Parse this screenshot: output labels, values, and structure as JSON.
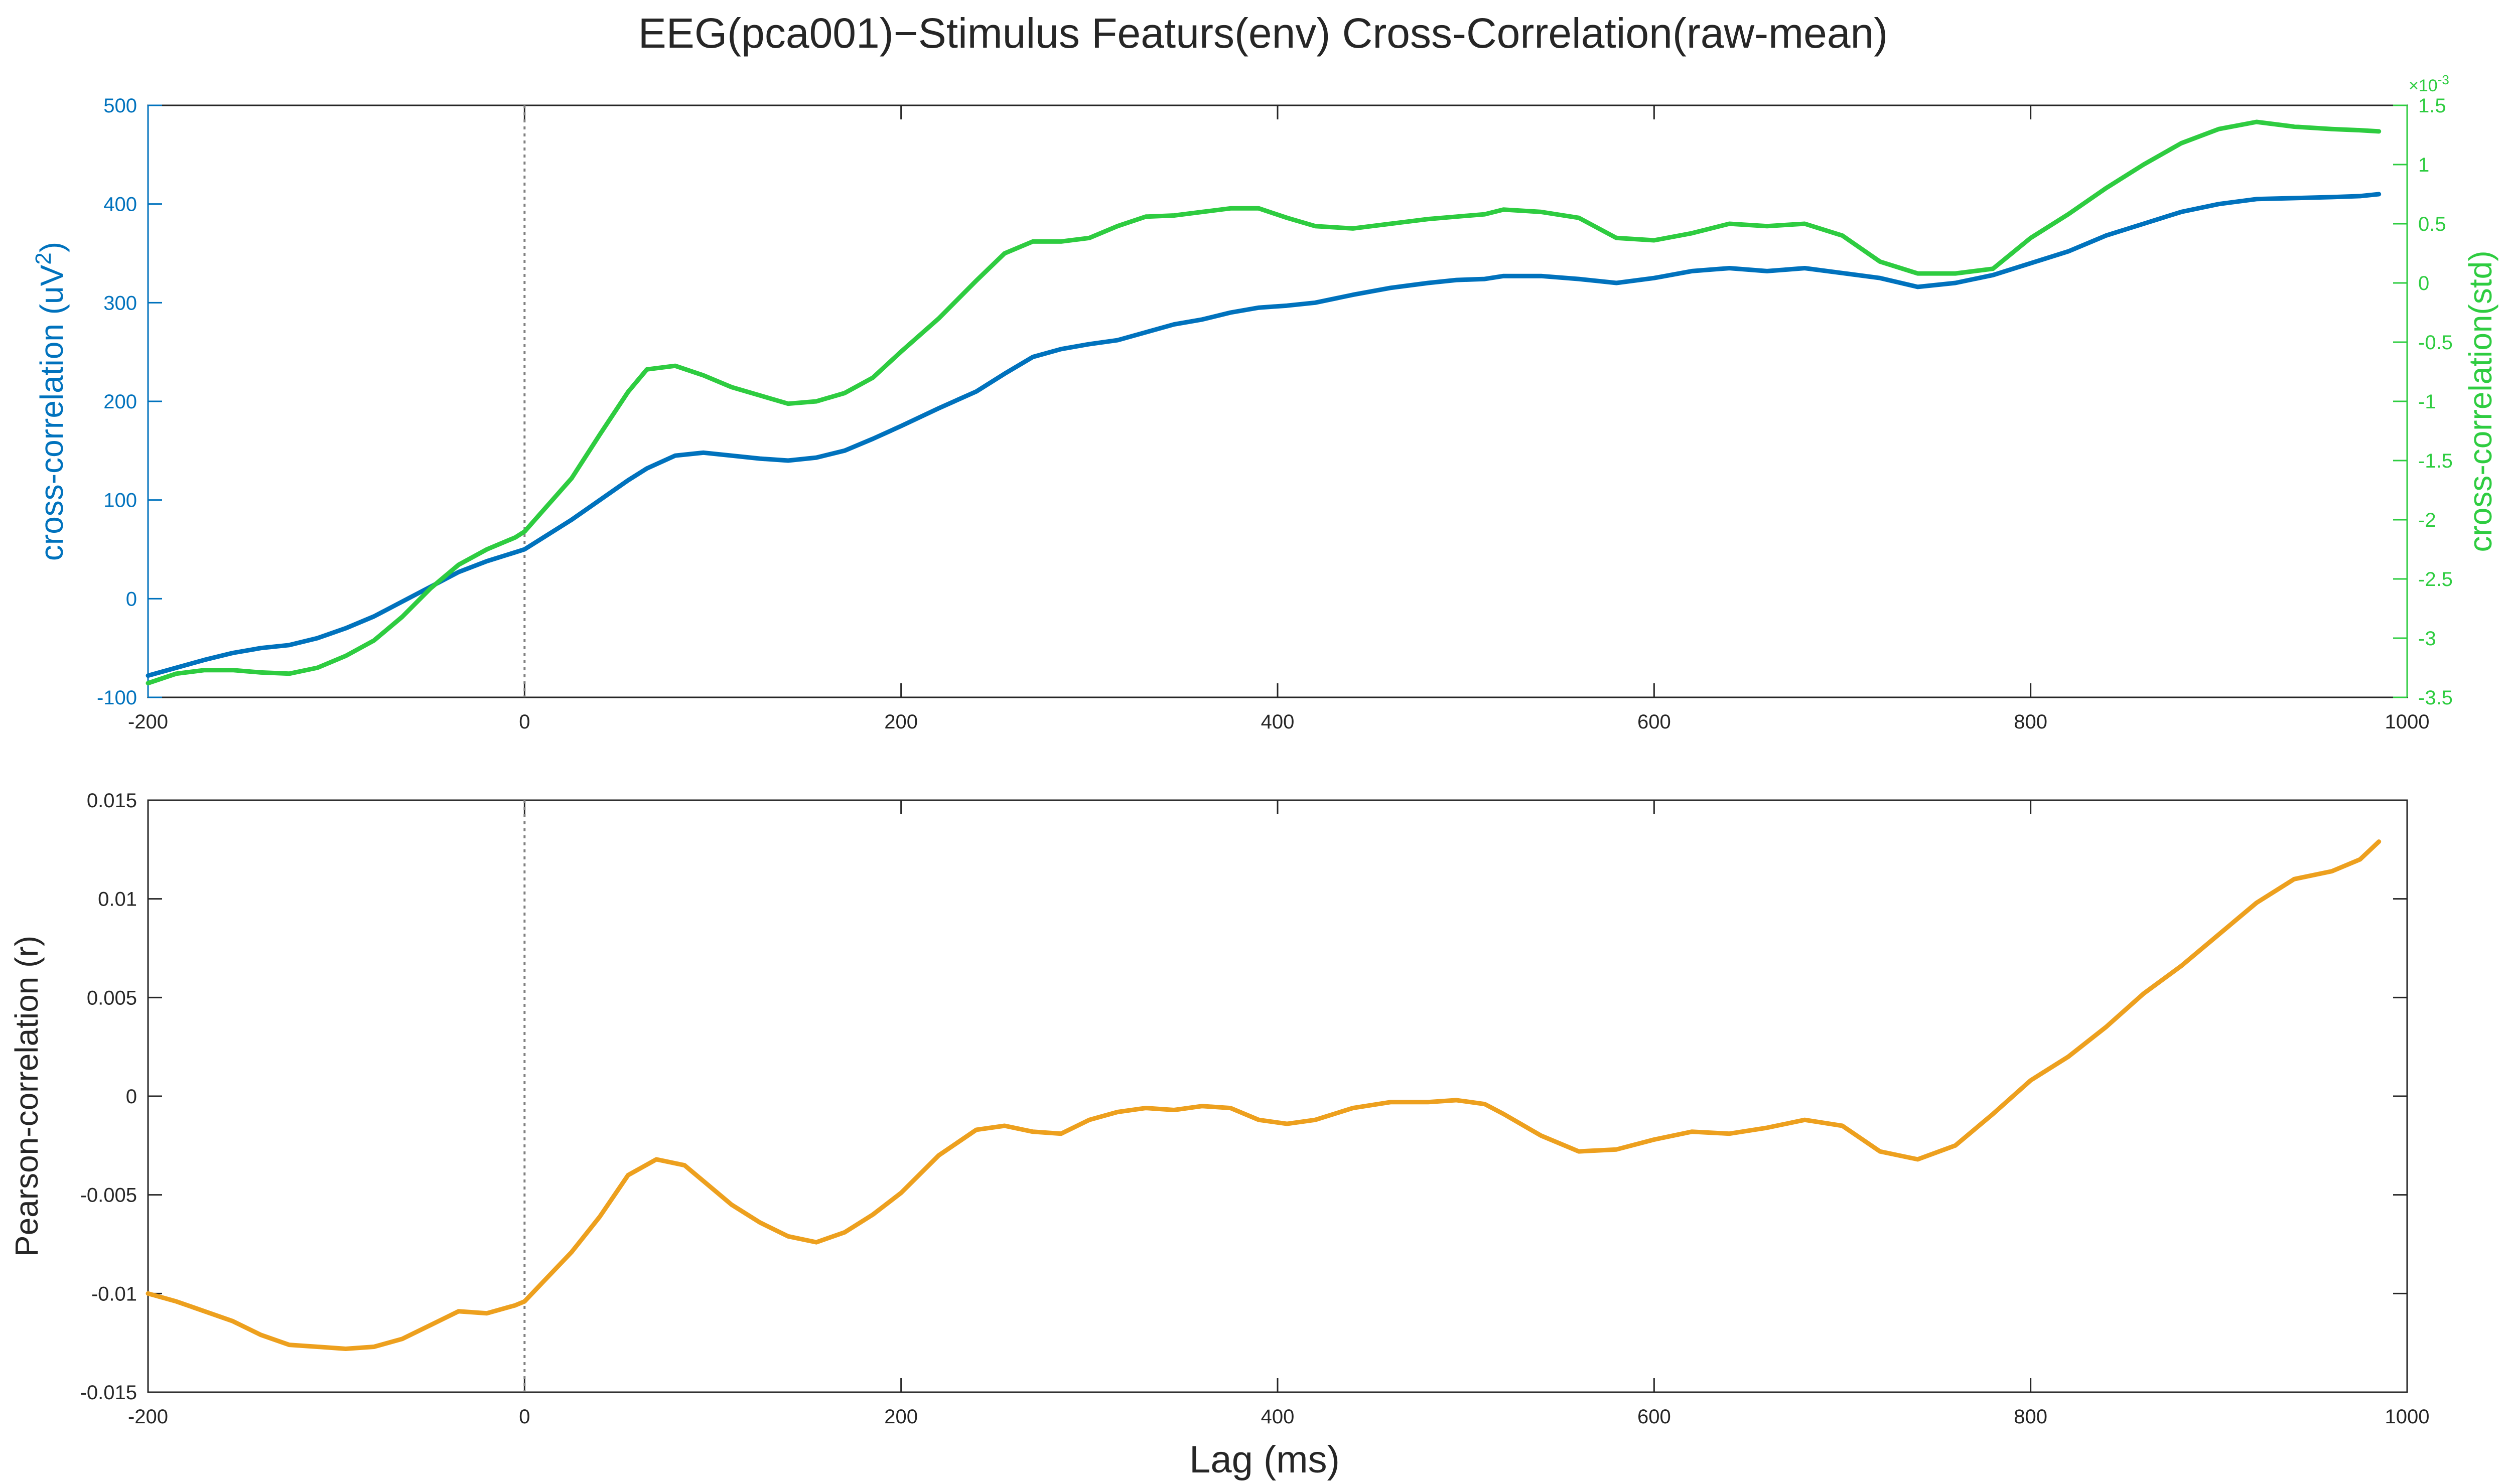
{
  "title": "EEG(pca001)−Stimulus Featurs(env) Cross-Correlation(raw-mean)",
  "colors": {
    "raw": "#0072BD",
    "std": "#2ECC40",
    "pearson": "#EDA01E",
    "axis": "#262626",
    "zero_line": "#808080"
  },
  "chart_data": [
    {
      "type": "line",
      "ylabel": "cross-correlation (uV^2)",
      "ylabel_right": "cross-correlation(std)",
      "right_exponent": "×10^-3",
      "xlim": [
        -200,
        1000
      ],
      "ylim": [
        -100,
        500
      ],
      "ylim_right": [
        -3.5,
        1.5
      ],
      "x_ticks": [
        "-200",
        "0",
        "200",
        "400",
        "600",
        "800",
        "1000"
      ],
      "y_ticks": [
        "-100",
        "0",
        "100",
        "200",
        "300",
        "400",
        "500"
      ],
      "y_ticks_right": [
        "-3.5",
        "-3",
        "-2.5",
        "-2",
        "-1.5",
        "-1",
        "-0.5",
        "0",
        "0.5",
        "1",
        "1.5"
      ],
      "vline_x": 0,
      "series": [
        {
          "axis": "left",
          "x": [
            -200,
            -185,
            -170,
            -155,
            -140,
            -125,
            -110,
            -95,
            -80,
            -65,
            -50,
            -35,
            -20,
            -5,
            0,
            10,
            25,
            40,
            55,
            65,
            80,
            95,
            110,
            125,
            140,
            155,
            170,
            185,
            200,
            220,
            240,
            255,
            270,
            285,
            300,
            315,
            330,
            345,
            360,
            375,
            390,
            405,
            420,
            440,
            460,
            480,
            495,
            510,
            520,
            540,
            560,
            580,
            600,
            620,
            640,
            660,
            680,
            700,
            720,
            740,
            760,
            780,
            800,
            820,
            840,
            860,
            880,
            900,
            920,
            940,
            960,
            975,
            985
          ],
          "y": [
            -78,
            -70,
            -62,
            -55,
            -50,
            -47,
            -40,
            -30,
            -18,
            -3,
            12,
            27,
            38,
            47,
            50,
            62,
            80,
            100,
            120,
            132,
            145,
            148,
            145,
            142,
            140,
            143,
            150,
            162,
            175,
            193,
            210,
            228,
            245,
            253,
            258,
            262,
            270,
            278,
            283,
            290,
            295,
            297,
            300,
            308,
            315,
            320,
            323,
            324,
            327,
            327,
            324,
            320,
            325,
            332,
            335,
            332,
            335,
            330,
            325,
            316,
            320,
            328,
            340,
            352,
            368,
            380,
            392,
            400,
            405,
            406,
            407,
            408,
            410
          ]
        },
        {
          "axis": "right",
          "x": [
            -200,
            -185,
            -170,
            -155,
            -140,
            -125,
            -110,
            -95,
            -80,
            -65,
            -50,
            -35,
            -20,
            -5,
            0,
            10,
            25,
            40,
            55,
            65,
            80,
            95,
            110,
            125,
            140,
            155,
            170,
            185,
            200,
            220,
            240,
            255,
            270,
            285,
            300,
            315,
            330,
            345,
            360,
            375,
            390,
            405,
            420,
            440,
            460,
            480,
            495,
            510,
            520,
            540,
            560,
            580,
            600,
            620,
            640,
            660,
            680,
            700,
            720,
            740,
            760,
            780,
            800,
            820,
            840,
            860,
            880,
            900,
            920,
            940,
            960,
            975,
            985
          ],
          "y": [
            -3.38,
            -3.3,
            -3.27,
            -3.27,
            -3.29,
            -3.3,
            -3.25,
            -3.15,
            -3.02,
            -2.82,
            -2.58,
            -2.38,
            -2.25,
            -2.15,
            -2.1,
            -1.92,
            -1.65,
            -1.28,
            -0.92,
            -0.73,
            -0.7,
            -0.78,
            -0.88,
            -0.95,
            -1.02,
            -1.0,
            -0.93,
            -0.8,
            -0.58,
            -0.3,
            0.02,
            0.25,
            0.35,
            0.35,
            0.38,
            0.48,
            0.56,
            0.57,
            0.6,
            0.63,
            0.63,
            0.55,
            0.48,
            0.46,
            0.5,
            0.54,
            0.56,
            0.58,
            0.62,
            0.6,
            0.55,
            0.38,
            0.36,
            0.42,
            0.5,
            0.48,
            0.5,
            0.4,
            0.18,
            0.08,
            0.08,
            0.12,
            0.38,
            0.58,
            0.8,
            1.0,
            1.18,
            1.3,
            1.36,
            1.32,
            1.3,
            1.29,
            1.28
          ]
        }
      ]
    },
    {
      "type": "line",
      "ylabel": "Pearson-correlation (r)",
      "xlabel": "Lag (ms)",
      "xlim": [
        -200,
        1000
      ],
      "ylim": [
        -0.015,
        0.015
      ],
      "x_ticks": [
        "-200",
        "0",
        "200",
        "400",
        "600",
        "800",
        "1000"
      ],
      "y_ticks": [
        "-0.015",
        "-0.01",
        "-0.005",
        "0",
        "0.005",
        "0.01",
        "0.015"
      ],
      "vline_x": 0,
      "series": [
        {
          "x": [
            -200,
            -185,
            -170,
            -155,
            -140,
            -125,
            -110,
            -95,
            -80,
            -65,
            -50,
            -35,
            -20,
            -5,
            0,
            10,
            25,
            40,
            55,
            70,
            85,
            95,
            110,
            125,
            140,
            155,
            170,
            185,
            200,
            220,
            240,
            255,
            270,
            285,
            300,
            315,
            330,
            345,
            360,
            375,
            390,
            405,
            420,
            440,
            460,
            480,
            495,
            510,
            520,
            540,
            560,
            580,
            600,
            620,
            640,
            660,
            680,
            700,
            720,
            740,
            760,
            780,
            800,
            820,
            840,
            860,
            880,
            900,
            920,
            940,
            960,
            975,
            985
          ],
          "y": [
            -0.01,
            -0.0104,
            -0.0109,
            -0.0114,
            -0.0121,
            -0.0126,
            -0.0127,
            -0.0128,
            -0.0127,
            -0.0123,
            -0.0116,
            -0.0109,
            -0.011,
            -0.0106,
            -0.0104,
            -0.0094,
            -0.0079,
            -0.0061,
            -0.004,
            -0.0032,
            -0.0035,
            -0.0043,
            -0.0055,
            -0.0064,
            -0.0071,
            -0.0074,
            -0.0069,
            -0.006,
            -0.0049,
            -0.003,
            -0.0017,
            -0.0015,
            -0.0018,
            -0.0019,
            -0.0012,
            -0.0008,
            -0.0006,
            -0.0007,
            -0.0005,
            -0.0006,
            -0.0012,
            -0.0014,
            -0.0012,
            -0.0006,
            -0.0003,
            -0.0003,
            -0.0002,
            -0.0004,
            -0.0009,
            -0.002,
            -0.0028,
            -0.0027,
            -0.0022,
            -0.0018,
            -0.0019,
            -0.0016,
            -0.0012,
            -0.0015,
            -0.0028,
            -0.0032,
            -0.0025,
            -0.0009,
            0.0008,
            0.002,
            0.0035,
            0.0052,
            0.0066,
            0.0082,
            0.0098,
            0.011,
            0.0114,
            0.012,
            0.0129
          ]
        }
      ]
    }
  ]
}
